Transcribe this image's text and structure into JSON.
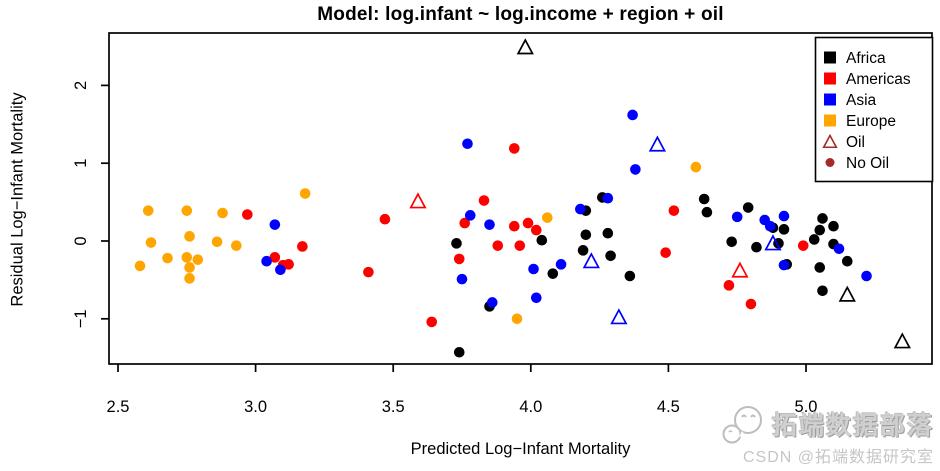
{
  "chart_data": {
    "type": "scatter",
    "title": "Model: log.infant ~ log.income + region + oil",
    "xlabel": "Predicted Log−Infant Mortality",
    "ylabel": "Residual Log−Infant Mortality",
    "xlim": [
      2.45,
      5.46
    ],
    "ylim": [
      -1.6,
      2.7
    ],
    "x_ticks": [
      "2.5",
      "3.0",
      "3.5",
      "4.0",
      "4.5",
      "5.0"
    ],
    "x_tick_values": [
      2.5,
      3.0,
      3.5,
      4.0,
      4.5,
      5.0
    ],
    "y_ticks": [
      "−1",
      "0",
      "1",
      "2"
    ],
    "y_tick_values": [
      -1,
      0,
      1,
      2
    ],
    "grid": false,
    "legend_position": "top-right",
    "series": [
      {
        "name": "Africa",
        "marker": "circle",
        "color": "#000000",
        "points": [
          [
            3.73,
            -0.03
          ],
          [
            3.74,
            -1.43
          ],
          [
            3.85,
            -0.84
          ],
          [
            4.04,
            0.01
          ],
          [
            4.08,
            -0.42
          ],
          [
            4.2,
            0.39
          ],
          [
            4.26,
            0.56
          ],
          [
            4.2,
            0.08
          ],
          [
            4.19,
            -0.12
          ],
          [
            4.28,
            0.1
          ],
          [
            4.29,
            -0.19
          ],
          [
            4.36,
            -0.45
          ],
          [
            4.63,
            0.54
          ],
          [
            4.64,
            0.37
          ],
          [
            4.73,
            -0.01
          ],
          [
            4.79,
            0.43
          ],
          [
            4.88,
            0.17
          ],
          [
            4.92,
            0.15
          ],
          [
            4.9,
            -0.03
          ],
          [
            4.82,
            -0.08
          ],
          [
            5.06,
            0.29
          ],
          [
            5.05,
            0.14
          ],
          [
            5.03,
            0.02
          ],
          [
            5.1,
            0.19
          ],
          [
            5.1,
            -0.04
          ],
          [
            5.15,
            -0.26
          ],
          [
            4.93,
            -0.3
          ],
          [
            5.05,
            -0.34
          ],
          [
            5.06,
            -0.64
          ]
        ]
      },
      {
        "name": "Americas",
        "marker": "circle",
        "color": "#FF0000",
        "points": [
          [
            2.97,
            0.34
          ],
          [
            3.07,
            -0.21
          ],
          [
            3.1,
            -0.31
          ],
          [
            3.12,
            -0.3
          ],
          [
            3.17,
            -0.07
          ],
          [
            3.41,
            -0.4
          ],
          [
            3.47,
            0.28
          ],
          [
            3.64,
            -1.04
          ],
          [
            3.74,
            -0.23
          ],
          [
            3.76,
            0.23
          ],
          [
            3.83,
            0.52
          ],
          [
            3.88,
            -0.06
          ],
          [
            3.94,
            0.19
          ],
          [
            3.94,
            1.19
          ],
          [
            3.96,
            -0.06
          ],
          [
            3.99,
            0.23
          ],
          [
            4.02,
            0.14
          ],
          [
            4.49,
            -0.15
          ],
          [
            4.52,
            0.39
          ],
          [
            4.72,
            -0.57
          ],
          [
            4.8,
            -0.81
          ],
          [
            4.99,
            -0.06
          ]
        ]
      },
      {
        "name": "Asia",
        "marker": "circle",
        "color": "#0000FF",
        "points": [
          [
            3.04,
            -0.26
          ],
          [
            3.07,
            0.21
          ],
          [
            3.09,
            -0.37
          ],
          [
            3.75,
            -0.49
          ],
          [
            3.77,
            1.25
          ],
          [
            3.78,
            0.33
          ],
          [
            3.85,
            0.21
          ],
          [
            3.86,
            -0.79
          ],
          [
            4.01,
            -0.36
          ],
          [
            4.02,
            -0.73
          ],
          [
            4.11,
            -0.3
          ],
          [
            4.18,
            0.41
          ],
          [
            4.28,
            0.55
          ],
          [
            4.37,
            1.62
          ],
          [
            4.38,
            0.92
          ],
          [
            4.75,
            0.31
          ],
          [
            4.85,
            0.27
          ],
          [
            4.87,
            0.19
          ],
          [
            4.92,
            0.32
          ],
          [
            4.92,
            -0.31
          ],
          [
            5.12,
            -0.1
          ],
          [
            5.22,
            -0.45
          ]
        ]
      },
      {
        "name": "Europe",
        "marker": "circle",
        "color": "#FFA500",
        "points": [
          [
            2.58,
            -0.32
          ],
          [
            2.61,
            0.39
          ],
          [
            2.62,
            -0.02
          ],
          [
            2.68,
            -0.22
          ],
          [
            2.75,
            0.39
          ],
          [
            2.75,
            -0.21
          ],
          [
            2.76,
            0.06
          ],
          [
            2.76,
            -0.34
          ],
          [
            2.76,
            -0.48
          ],
          [
            2.79,
            -0.24
          ],
          [
            2.86,
            -0.01
          ],
          [
            2.88,
            0.36
          ],
          [
            2.93,
            -0.06
          ],
          [
            3.18,
            0.61
          ],
          [
            3.95,
            -1.0
          ],
          [
            4.06,
            0.3
          ],
          [
            4.6,
            0.95
          ]
        ]
      },
      {
        "name": "Oil (Africa)",
        "marker": "triangle-open",
        "color": "#000000",
        "points": [
          [
            3.98,
            2.48
          ],
          [
            5.15,
            -0.7
          ],
          [
            5.35,
            -1.3
          ]
        ]
      },
      {
        "name": "Oil (Americas)",
        "marker": "triangle-open",
        "color": "#FF0000",
        "points": [
          [
            3.59,
            0.5
          ],
          [
            4.76,
            -0.39
          ]
        ]
      },
      {
        "name": "Oil (Asia)",
        "marker": "triangle-open",
        "color": "#0000FF",
        "points": [
          [
            4.46,
            1.23
          ],
          [
            4.22,
            -0.27
          ],
          [
            4.88,
            -0.04
          ],
          [
            4.32,
            -0.99
          ]
        ]
      }
    ]
  },
  "legend": {
    "items": [
      {
        "label": "Africa",
        "marker": "square",
        "color": "#000000"
      },
      {
        "label": "Americas",
        "marker": "square",
        "color": "#FF0000"
      },
      {
        "label": "Asia",
        "marker": "square",
        "color": "#0000FF"
      },
      {
        "label": "Europe",
        "marker": "square",
        "color": "#FFA500"
      },
      {
        "label": "Oil",
        "marker": "triangle-open",
        "color": "#A52A2A"
      },
      {
        "label": "No Oil",
        "marker": "circle",
        "color": "#A52A2A"
      }
    ]
  },
  "colors": {
    "africa": "#000000",
    "americas": "#FF0000",
    "asia": "#0000FF",
    "europe": "#FFA500",
    "oil_legend": "#A52A2A",
    "axis": "#000000",
    "watermark": "#c6c6c6"
  },
  "watermark": {
    "icon": "wechat-chat-bubbles-icon",
    "line1": "拓端数据部落",
    "line2": "CSDN @拓端数据研究室"
  }
}
